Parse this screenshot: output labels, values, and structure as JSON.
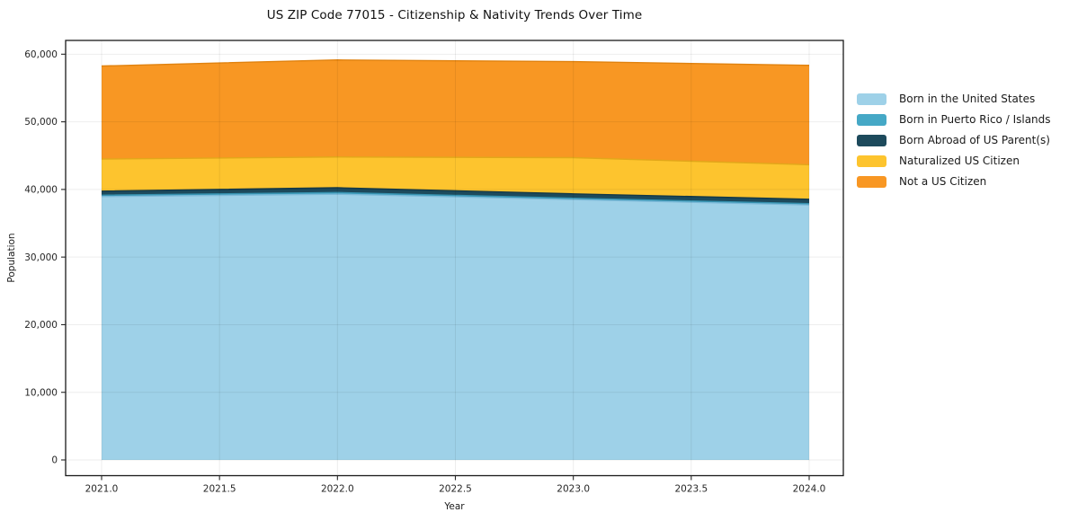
{
  "page": {
    "background": "#ffffff"
  },
  "chart": {
    "title": "US ZIP Code 77015 - Citizenship & Nativity Trends Over Time",
    "xlabel": "Year",
    "ylabel": "Population",
    "x_tick_labels": [
      "2021.0",
      "2021.5",
      "2022.0",
      "2022.5",
      "2023.0",
      "2023.5",
      "2024.0"
    ],
    "y_tick_labels": [
      "0",
      "10,000",
      "20,000",
      "30,000",
      "40,000",
      "50,000",
      "60,000"
    ],
    "spine_color": "#1a1a1a",
    "grid_color": "rgba(0,0,0,0.07)",
    "tick_color": "#262626"
  },
  "chart_data": {
    "type": "area",
    "stacked": true,
    "title": "US ZIP Code 77015 - Citizenship & Nativity Trends Over Time",
    "xlabel": "Year",
    "ylabel": "Population",
    "x": [
      2021,
      2022,
      2023,
      2024
    ],
    "series": [
      {
        "name": "Born in the United States",
        "values": [
          38950,
          39300,
          38500,
          37700
        ],
        "fill": "#9ed1e8",
        "edge": "#7cb9d8"
      },
      {
        "name": "Born in Puerto Rico / Islands",
        "values": [
          200,
          250,
          200,
          200
        ],
        "fill": "#45a8c6",
        "edge": "#3691af"
      },
      {
        "name": "Born Abroad of US Parent(s)",
        "values": [
          600,
          700,
          650,
          650
        ],
        "fill": "#1d4a5c",
        "edge": "#153947"
      },
      {
        "name": "Naturalized US Citizen",
        "values": [
          4750,
          4550,
          5350,
          5100
        ],
        "fill": "#fdc42e",
        "edge": "#e2a71a"
      },
      {
        "name": "Not a US Citizen",
        "values": [
          13750,
          14350,
          14200,
          14700
        ],
        "fill": "#f89723",
        "edge": "#e0820f"
      }
    ],
    "stacked_totals": [
      58250,
      59150,
      58900,
      58350
    ],
    "xlim": [
      2021,
      2024
    ],
    "ylim": [
      0,
      60000
    ],
    "x_ticks": [
      2021.0,
      2021.5,
      2022.0,
      2022.5,
      2023.0,
      2023.5,
      2024.0
    ],
    "y_ticks": [
      0,
      10000,
      20000,
      30000,
      40000,
      50000,
      60000
    ],
    "grid": true,
    "legend_position": "right-outside"
  }
}
